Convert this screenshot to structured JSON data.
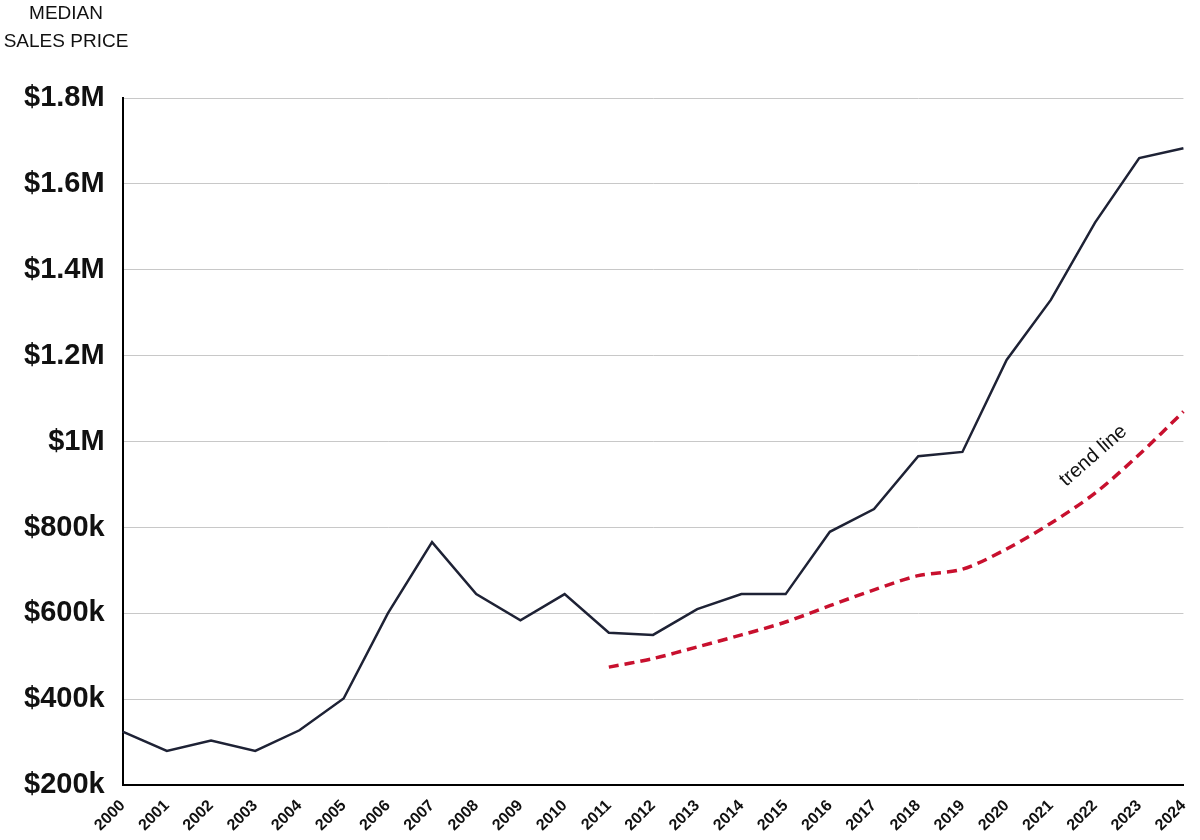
{
  "chart_data": {
    "type": "line",
    "y_label": "MEDIAN SALES PRICE",
    "categories": [
      "2000",
      "2001",
      "2002",
      "2003",
      "2004",
      "2005",
      "2006",
      "2007",
      "2008",
      "2009",
      "2010",
      "2011",
      "2012",
      "2013",
      "2014",
      "2015",
      "2016",
      "2017",
      "2018",
      "2019",
      "2020",
      "2021",
      "2022",
      "2023",
      "2024"
    ],
    "series": [
      {
        "color": "#1e2235",
        "line_style": "solid",
        "values": [
          325000,
          280000,
          304000,
          280000,
          328000,
          402000,
          600000,
          766000,
          645000,
          584000,
          645000,
          555000,
          550000,
          610000,
          645000,
          645000,
          790000,
          843000,
          966000,
          976000,
          1190000,
          1330000,
          1510000,
          1660000,
          1683000
        ]
      },
      {
        "name": "trend line",
        "color": "#c8102e",
        "line_style": "dashed",
        "values": [
          null,
          null,
          null,
          null,
          null,
          null,
          null,
          null,
          null,
          null,
          null,
          475000,
          495000,
          522000,
          550000,
          580000,
          618000,
          655000,
          688000,
          703000,
          750000,
          810000,
          880000,
          970000,
          1070000
        ]
      }
    ],
    "ylim": [
      200000,
      1800000
    ],
    "yticks": [
      {
        "value": 200000,
        "label": "$200k"
      },
      {
        "value": 400000,
        "label": "$400k"
      },
      {
        "value": 600000,
        "label": "$600k"
      },
      {
        "value": 800000,
        "label": "$800k"
      },
      {
        "value": 1000000,
        "label": "$1M"
      },
      {
        "value": 1200000,
        "label": "$1.2M"
      },
      {
        "value": 1400000,
        "label": "$1.4M"
      },
      {
        "value": 1600000,
        "label": "$1.6M"
      },
      {
        "value": 1800000,
        "label": "$1.8M"
      }
    ],
    "grid": true
  }
}
